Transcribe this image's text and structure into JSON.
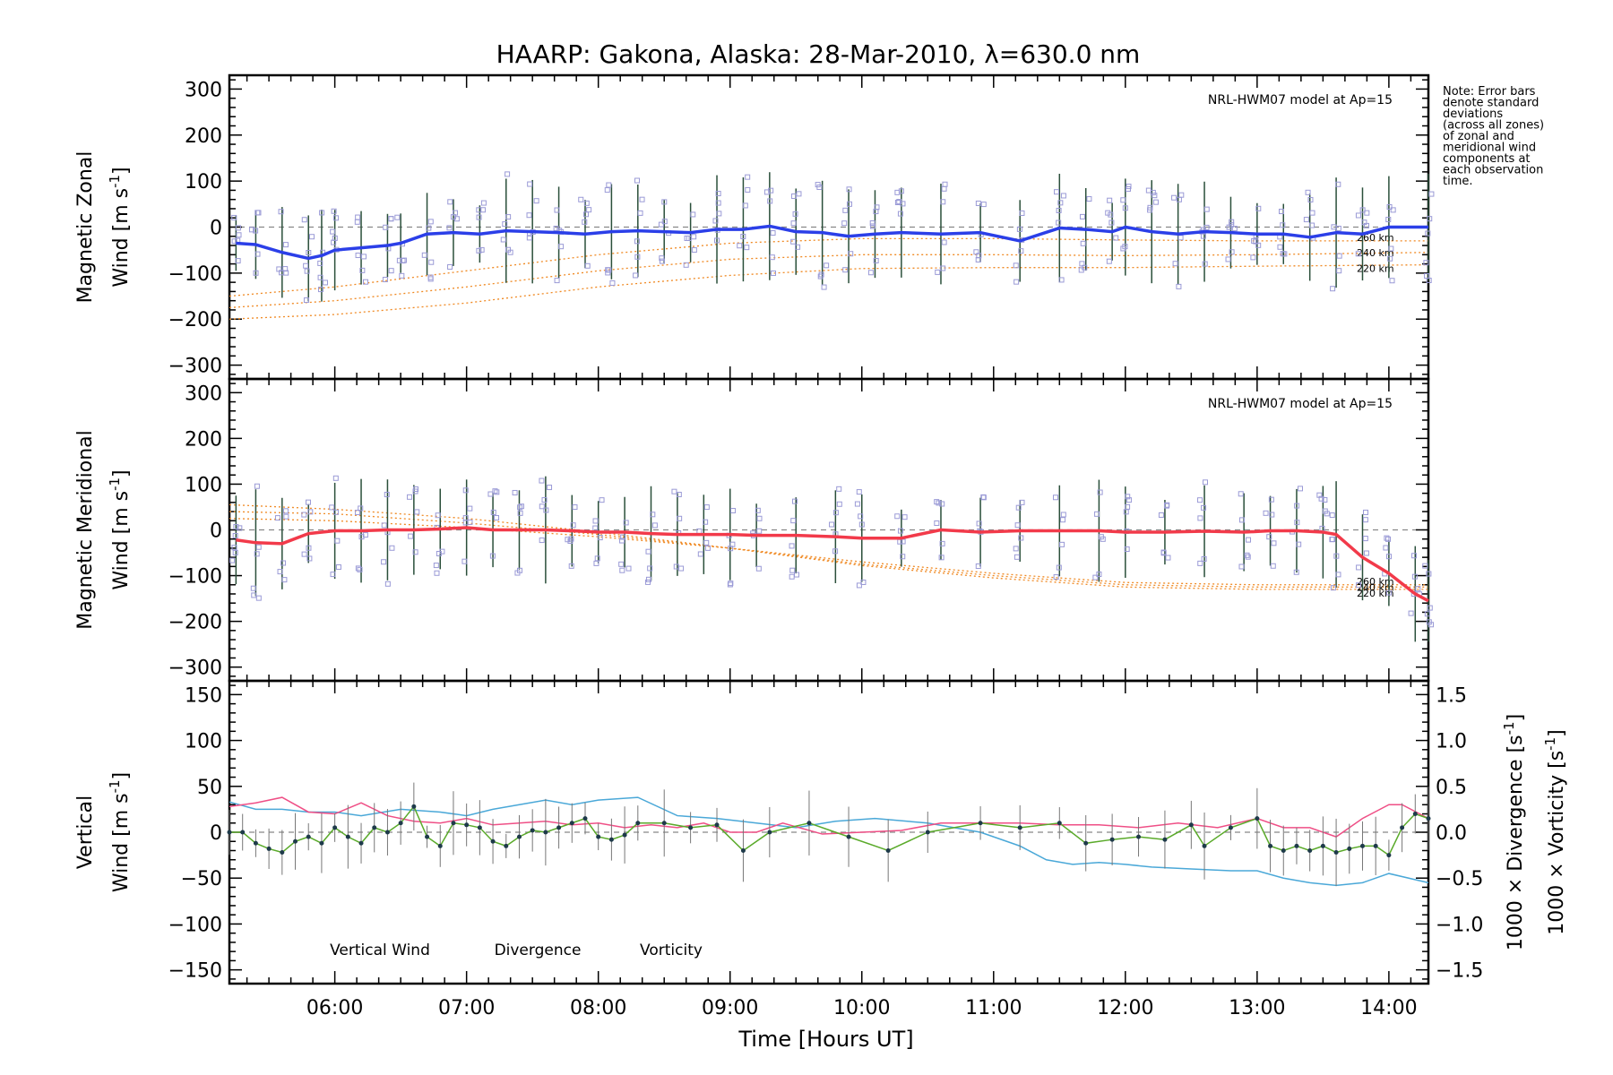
{
  "colors": {
    "zonal": "#2b3fe8",
    "meridional": "#f23a4a",
    "model": "#f08a24",
    "scatter": "#9a9ad6",
    "errorbar": "#2a4f3a",
    "vertical": "#5aaa2a",
    "divergence": "#4aa8d8",
    "vorticity": "#ef4f86"
  },
  "chart_data": {
    "type": "line",
    "title": "HAARP: Gakona,  Alaska: 28-Mar-2010, λ=630.0 nm",
    "xlabel": "Time [Hours UT]",
    "xlim": [
      5.2,
      14.3
    ],
    "x_ticks": [
      "06:00",
      "07:00",
      "08:00",
      "09:00",
      "10:00",
      "11:00",
      "12:00",
      "13:00",
      "14:00"
    ],
    "note": [
      "Note: Error bars",
      "denote standard",
      "deviations",
      "(across all zones)",
      "of zonal and",
      "meridional wind",
      "components at",
      "each observation",
      "time."
    ],
    "panels": [
      {
        "id": "zonal",
        "ylabel_line1": "Magnetic Zonal",
        "ylabel_line2": "Wind [m s",
        "ylabel_sup": "-1",
        "ylabel_close": "]",
        "ylim": [
          -330,
          330
        ],
        "y_ticks": [
          300,
          200,
          100,
          0,
          -100,
          -200,
          -300
        ],
        "model_label": "NRL-HWM07 model at Ap=15",
        "model_alt_labels": [
          "260 km",
          "240 km",
          "220 km"
        ],
        "series": [
          {
            "name": "zonal",
            "x": [
              5.25,
              5.4,
              5.6,
              5.8,
              5.9,
              6.0,
              6.2,
              6.4,
              6.5,
              6.7,
              6.9,
              7.1,
              7.3,
              7.5,
              7.7,
              7.9,
              8.1,
              8.3,
              8.5,
              8.7,
              8.9,
              9.1,
              9.3,
              9.5,
              9.7,
              9.9,
              10.1,
              10.3,
              10.6,
              10.9,
              11.2,
              11.5,
              11.7,
              11.9,
              12.0,
              12.2,
              12.4,
              12.6,
              12.8,
              13.0,
              13.2,
              13.4,
              13.6,
              13.8,
              14.0,
              14.3
            ],
            "y": [
              -35,
              -38,
              -55,
              -68,
              -62,
              -50,
              -45,
              -40,
              -35,
              -15,
              -12,
              -15,
              -8,
              -10,
              -12,
              -15,
              -10,
              -8,
              -10,
              -12,
              -5,
              -5,
              2,
              -10,
              -12,
              -20,
              -15,
              -12,
              -15,
              -12,
              -30,
              -2,
              -5,
              -10,
              0,
              -10,
              -15,
              -10,
              -12,
              -15,
              -15,
              -22,
              -12,
              -15,
              0,
              0
            ]
          }
        ],
        "model_curves": [
          {
            "name": "260 km",
            "x": [
              5.2,
              6.0,
              7.0,
              8.0,
              9.0,
              10.0,
              11.0,
              12.0,
              13.0,
              14.3
            ],
            "y": [
              -150,
              -130,
              -95,
              -60,
              -35,
              -25,
              -25,
              -28,
              -30,
              -30
            ]
          },
          {
            "name": "240 km",
            "x": [
              5.2,
              6.0,
              7.0,
              8.0,
              9.0,
              10.0,
              11.0,
              12.0,
              13.0,
              14.3
            ],
            "y": [
              -175,
              -160,
              -130,
              -95,
              -70,
              -60,
              -60,
              -62,
              -60,
              -55
            ]
          },
          {
            "name": "220 km",
            "x": [
              5.2,
              6.0,
              7.0,
              8.0,
              9.0,
              10.0,
              11.0,
              12.0,
              13.0,
              14.3
            ],
            "y": [
              -200,
              -190,
              -165,
              -130,
              -105,
              -90,
              -88,
              -88,
              -85,
              -82
            ]
          }
        ]
      },
      {
        "id": "meridional",
        "ylabel_line1": "Magnetic Meridional",
        "ylabel_line2": "Wind [m s",
        "ylabel_sup": "-1",
        "ylabel_close": "]",
        "ylim": [
          -330,
          330
        ],
        "y_ticks": [
          300,
          200,
          100,
          0,
          -100,
          -200,
          -300
        ],
        "model_label": "NRL-HWM07 model at Ap=15",
        "model_alt_labels": [
          "260 km",
          "240 km",
          "220 km"
        ],
        "series": [
          {
            "name": "meridional",
            "x": [
              5.25,
              5.4,
              5.6,
              5.8,
              6.0,
              6.2,
              6.4,
              6.6,
              6.8,
              7.0,
              7.2,
              7.4,
              7.6,
              7.8,
              8.0,
              8.2,
              8.4,
              8.6,
              8.8,
              9.0,
              9.2,
              9.5,
              9.8,
              10.0,
              10.3,
              10.6,
              10.9,
              11.2,
              11.5,
              11.8,
              12.0,
              12.3,
              12.6,
              12.9,
              13.1,
              13.3,
              13.5,
              13.6,
              13.8,
              14.0,
              14.2,
              14.3
            ],
            "y": [
              -22,
              -28,
              -30,
              -8,
              -2,
              -2,
              0,
              0,
              2,
              5,
              0,
              0,
              0,
              -2,
              -5,
              -5,
              -8,
              -10,
              -10,
              -10,
              -12,
              -12,
              -15,
              -18,
              -18,
              0,
              -5,
              -2,
              -2,
              -2,
              -5,
              -5,
              -3,
              -5,
              -2,
              -2,
              -5,
              -10,
              -60,
              -95,
              -140,
              -155
            ]
          }
        ],
        "model_curves": [
          {
            "name": "260 km",
            "x": [
              5.2,
              6.0,
              7.0,
              8.0,
              9.0,
              10.0,
              11.0,
              12.0,
              13.0,
              14.3
            ],
            "y": [
              25,
              20,
              5,
              -15,
              -40,
              -70,
              -95,
              -115,
              -120,
              -120
            ]
          },
          {
            "name": "240 km",
            "x": [
              5.2,
              6.0,
              7.0,
              8.0,
              9.0,
              10.0,
              11.0,
              12.0,
              13.0,
              14.3
            ],
            "y": [
              40,
              35,
              15,
              -10,
              -40,
              -75,
              -100,
              -120,
              -125,
              -125
            ]
          },
          {
            "name": "220 km",
            "x": [
              5.2,
              6.0,
              7.0,
              8.0,
              9.0,
              10.0,
              11.0,
              12.0,
              13.0,
              14.3
            ],
            "y": [
              55,
              45,
              25,
              -5,
              -40,
              -78,
              -105,
              -125,
              -130,
              -130
            ]
          }
        ]
      },
      {
        "id": "vertical",
        "ylabel_line1": "Vertical",
        "ylabel_line2": "Wind [m s",
        "ylabel_sup": "-1",
        "ylabel_close": "]",
        "ylim": [
          -165,
          165
        ],
        "y_ticks": [
          150,
          100,
          50,
          0,
          -50,
          -100,
          -150
        ],
        "right_ylim": [
          -1.65,
          1.65
        ],
        "right_ticks": [
          "1.5",
          "1.0",
          "0.5",
          "0.0",
          "−0.5",
          "−1.0",
          "−1.5"
        ],
        "right_label_divergence": "1000 × Divergence [s",
        "right_label_vorticity": "1000 × Vorticity [s",
        "legend": [
          "Vertical Wind",
          "Divergence",
          "Vorticity"
        ],
        "series": [
          {
            "name": "Vertical Wind",
            "x": [
              5.2,
              5.3,
              5.4,
              5.5,
              5.6,
              5.7,
              5.8,
              5.9,
              6.0,
              6.1,
              6.2,
              6.3,
              6.4,
              6.5,
              6.6,
              6.7,
              6.8,
              6.9,
              7.0,
              7.1,
              7.2,
              7.3,
              7.4,
              7.5,
              7.6,
              7.7,
              7.8,
              7.9,
              8.0,
              8.1,
              8.2,
              8.3,
              8.5,
              8.7,
              8.9,
              9.1,
              9.3,
              9.6,
              9.9,
              10.2,
              10.5,
              10.9,
              11.2,
              11.5,
              11.7,
              11.9,
              12.1,
              12.3,
              12.5,
              12.6,
              12.8,
              13.0,
              13.1,
              13.2,
              13.3,
              13.4,
              13.5,
              13.6,
              13.7,
              13.8,
              13.9,
              14.0,
              14.1,
              14.2,
              14.3
            ],
            "y": [
              0,
              0,
              -12,
              -18,
              -22,
              -10,
              -5,
              -12,
              5,
              -5,
              -12,
              5,
              0,
              10,
              28,
              -5,
              -15,
              10,
              8,
              5,
              -10,
              -15,
              -5,
              2,
              0,
              5,
              10,
              15,
              -5,
              -8,
              -3,
              10,
              10,
              5,
              8,
              -20,
              0,
              10,
              -5,
              -20,
              0,
              10,
              5,
              10,
              -12,
              -8,
              -5,
              -8,
              8,
              -15,
              5,
              15,
              -15,
              -20,
              -15,
              -20,
              -15,
              -22,
              -18,
              -15,
              -15,
              -25,
              5,
              20,
              15
            ]
          },
          {
            "name": "Divergence",
            "x": [
              5.2,
              5.4,
              5.6,
              5.8,
              6.0,
              6.2,
              6.5,
              6.8,
              7.0,
              7.2,
              7.4,
              7.6,
              7.8,
              8.0,
              8.3,
              8.6,
              8.9,
              9.2,
              9.5,
              9.8,
              10.1,
              10.5,
              10.9,
              11.2,
              11.4,
              11.6,
              11.8,
              12.0,
              12.2,
              12.5,
              12.8,
              13.0,
              13.2,
              13.4,
              13.6,
              13.8,
              14.0,
              14.3
            ],
            "y": [
              0.33,
              0.25,
              0.25,
              0.22,
              0.22,
              0.18,
              0.25,
              0.22,
              0.18,
              0.25,
              0.3,
              0.35,
              0.3,
              0.35,
              0.38,
              0.18,
              0.15,
              0.1,
              0.05,
              0.12,
              0.15,
              0.1,
              0.0,
              -0.15,
              -0.3,
              -0.35,
              -0.33,
              -0.35,
              -0.38,
              -0.4,
              -0.42,
              -0.42,
              -0.5,
              -0.55,
              -0.58,
              -0.55,
              -0.45,
              -0.55
            ]
          },
          {
            "name": "Vorticity",
            "x": [
              5.2,
              5.4,
              5.6,
              5.8,
              6.0,
              6.2,
              6.4,
              6.6,
              6.8,
              7.0,
              7.2,
              7.4,
              7.6,
              7.8,
              8.0,
              8.2,
              8.4,
              8.6,
              8.8,
              9.0,
              9.2,
              9.4,
              9.7,
              10.0,
              10.3,
              10.6,
              10.9,
              11.2,
              11.5,
              11.8,
              12.1,
              12.4,
              12.7,
              13.0,
              13.2,
              13.4,
              13.6,
              13.8,
              14.0,
              14.1,
              14.3
            ],
            "y": [
              0.28,
              0.32,
              0.38,
              0.22,
              0.2,
              0.32,
              0.18,
              0.12,
              0.1,
              0.15,
              0.08,
              0.1,
              0.12,
              0.08,
              0.1,
              0.05,
              0.08,
              0.05,
              0.1,
              0.0,
              0.0,
              0.1,
              -0.02,
              0.0,
              0.02,
              0.1,
              0.1,
              0.1,
              0.08,
              0.08,
              0.05,
              0.1,
              0.05,
              0.15,
              0.05,
              0.05,
              -0.05,
              0.15,
              0.3,
              0.3,
              0.15
            ]
          }
        ]
      }
    ]
  }
}
